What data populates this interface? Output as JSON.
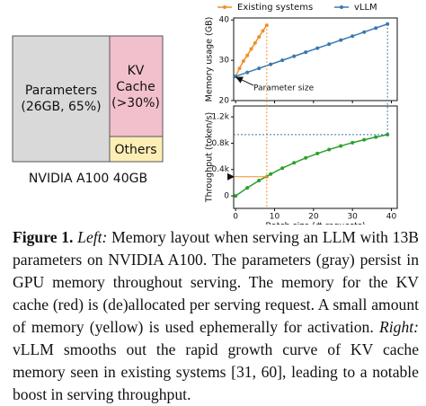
{
  "layout_diagram": {
    "parameters": "Parameters",
    "parameters_detail": "(26GB, 65%)",
    "kv": "KV",
    "kv_cache": "Cache",
    "kv_detail": "(>30%)",
    "others": "Others",
    "device": "NVIDIA A100 40GB"
  },
  "chart_data": [
    {
      "type": "line",
      "ylabel": "Memory usage (GB)",
      "xlim": [
        -0.5,
        41.5
      ],
      "ylim": [
        20,
        40.5
      ],
      "yticks": [
        20,
        30,
        40
      ],
      "xticks": [
        0,
        10,
        20,
        30,
        40
      ],
      "annotation": "Parameter size",
      "series": [
        {
          "name": "Existing systems",
          "color": "#f28e2b",
          "x": [
            0,
            1,
            2,
            3,
            4,
            5,
            6,
            7,
            8
          ],
          "values": [
            26,
            28,
            29.8,
            31.2,
            32.8,
            34.3,
            35.8,
            37.3,
            38.7
          ]
        },
        {
          "name": "vLLM",
          "color": "#3a78b0",
          "x": [
            0,
            3,
            6,
            9,
            12,
            15,
            18,
            21,
            24,
            27,
            30,
            33,
            36,
            39
          ],
          "values": [
            26,
            27,
            28,
            29,
            30,
            31,
            32,
            33,
            34,
            35,
            36,
            37,
            38,
            39
          ]
        }
      ]
    },
    {
      "type": "line",
      "ylabel": "Throughput (token/s)",
      "xlabel": "Batch size (# requests)",
      "xlim": [
        -0.5,
        41.5
      ],
      "ylim": [
        -190,
        1365
      ],
      "yticks": [
        0,
        {
          "value": 400,
          "label": "0.4k"
        },
        {
          "value": 800,
          "label": "0.8k"
        },
        {
          "value": 1200,
          "label": "1.2k"
        }
      ],
      "xticks": [
        0,
        10,
        20,
        30,
        40
      ],
      "series": [
        {
          "name": "Existing systems",
          "color": "#f28e2b",
          "x": [
            8
          ],
          "values": [
            290
          ]
        },
        {
          "name": "vLLM",
          "color": "#2ca02c",
          "x": [
            0,
            3,
            6,
            9,
            12,
            15,
            18,
            21,
            24,
            27,
            30,
            33,
            36,
            39
          ],
          "values": [
            0,
            122,
            232,
            331,
            421,
            502,
            577,
            643,
            703,
            758,
            808,
            852,
            893,
            930
          ]
        }
      ]
    }
  ],
  "caption": {
    "label": "Figure 1.",
    "left": "Left:",
    "text1": "Memory layout when serving an LLM with 13B parameters on NVIDIA A100. The parameters (gray) persist in GPU memory throughout serving. The memory for the KV cache (red) is (de)allocated per serving request. A small amount of memory (yellow) is used ephemerally for activation.",
    "right": "Right:",
    "text2": "vLLM smooths out the rapid growth curve of KV cache memory seen in existing systems [31, 60], leading to a notable boost in serving throughput."
  }
}
